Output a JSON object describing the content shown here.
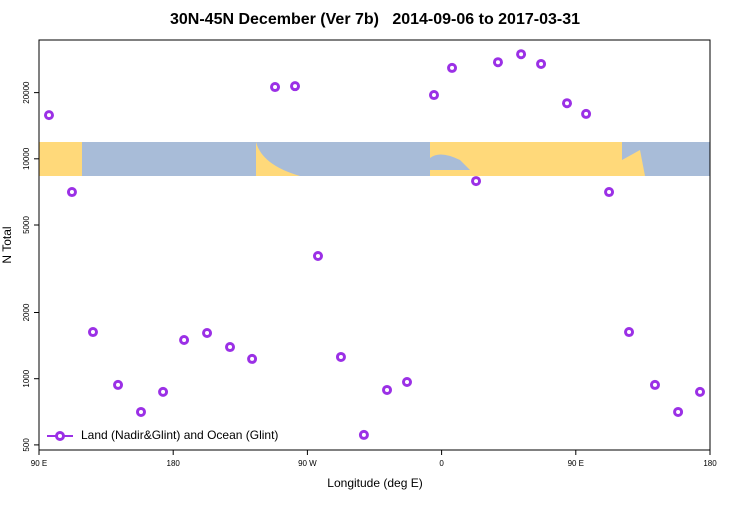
{
  "chart_data": {
    "type": "scatter",
    "title": "30N-45N December (Ver 7b)   2014-09-06 to 2017-03-31",
    "x_label": "Longitude (deg E)",
    "y_label": "N Total",
    "log_y": true,
    "legend": "bottom-left",
    "xlim": [
      90,
      540
    ],
    "xticks": [
      {
        "value": 90,
        "label": "90 E"
      },
      {
        "value": 180,
        "label": "180"
      },
      {
        "value": 270,
        "label": "90 W"
      },
      {
        "value": 360,
        "label": "0"
      },
      {
        "value": 450,
        "label": "90 E"
      },
      {
        "value": 540,
        "label": "180"
      }
    ],
    "ylim": [
      474,
      34700
    ],
    "yticks": [
      500,
      1000,
      2000,
      5000,
      10000,
      20000
    ],
    "series": [
      {
        "name": "Land (Nadir&Glint) and Ocean (Glint)",
        "color": "#9b30e6",
        "x": [
          96.7,
          112.1,
          126.2,
          143,
          158.4,
          173.2,
          187.3,
          202.7,
          218.1,
          232.9,
          248.3,
          261.7,
          277.1,
          292.5,
          307.9,
          323.4,
          336.8,
          354.9,
          367,
          383.1,
          397.8,
          413.3,
          426.7,
          444.1,
          456.9,
          472.3,
          485.7,
          503.1,
          518.6,
          533.3
        ],
        "values": [
          15800,
          7060,
          1630,
          937,
          706,
          871,
          1500,
          1614,
          1393,
          1230,
          21200,
          21400,
          3615,
          1256,
          555,
          889,
          966,
          19500,
          25900,
          7920,
          27500,
          29900,
          27000,
          17900,
          16000,
          7060,
          1630,
          937,
          706,
          871
        ]
      }
    ]
  }
}
